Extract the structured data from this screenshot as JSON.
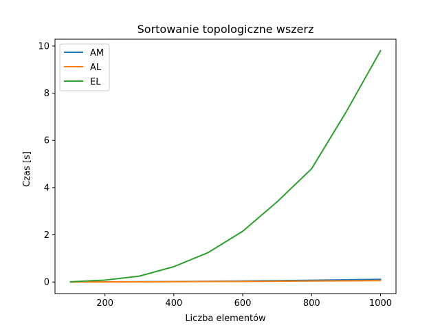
{
  "chart_data": {
    "type": "line",
    "title": "Sortowanie topologiczne wszerz",
    "xlabel": "Liczba elementów",
    "ylabel": "Czas [s]",
    "x": [
      100,
      200,
      300,
      400,
      500,
      600,
      700,
      800,
      900,
      1000
    ],
    "series": [
      {
        "name": "AM",
        "color": "#1f77b4",
        "values": [
          0.002,
          0.006,
          0.013,
          0.021,
          0.031,
          0.043,
          0.058,
          0.075,
          0.093,
          0.113
        ]
      },
      {
        "name": "AL",
        "color": "#ff7f0e",
        "values": [
          0.001,
          0.003,
          0.007,
          0.012,
          0.018,
          0.024,
          0.032,
          0.04,
          0.049,
          0.058
        ]
      },
      {
        "name": "EL",
        "color": "#2ca02c",
        "values": [
          0.01,
          0.08,
          0.25,
          0.65,
          1.25,
          2.15,
          3.4,
          4.8,
          7.2,
          9.8
        ]
      }
    ],
    "xlim": [
      55,
      1045
    ],
    "ylim": [
      -0.49,
      10.29
    ],
    "xticks": [
      200,
      400,
      600,
      800,
      1000
    ],
    "yticks": [
      0,
      2,
      4,
      6,
      8,
      10
    ],
    "grid": false,
    "legend": "top-left"
  }
}
